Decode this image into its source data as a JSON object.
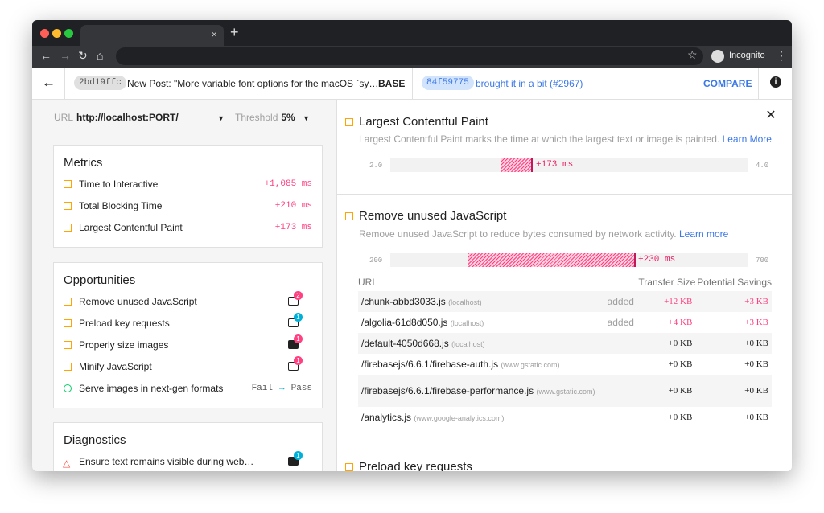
{
  "browser": {
    "tab_close": "×",
    "new_tab": "+",
    "incognito": "Incognito"
  },
  "header": {
    "base_hash": "2bd19ffc",
    "base_message": "New Post: \"More variable font options for the macOS `sy…",
    "base_label": "BASE",
    "compare_hash": "84f59775",
    "compare_message": "brought it in a bit (#2967)",
    "compare_button": "COMPARE",
    "info": "i",
    "colors": {
      "accent": "#3b78e7",
      "regression": "#ff4081",
      "warn": "#ffa400",
      "pass": "#0cce6b"
    }
  },
  "filters": {
    "url_label": "URL",
    "url_value": "http://localhost:PORT/",
    "threshold_label": "Threshold",
    "threshold_value": "5%"
  },
  "metrics": {
    "title": "Metrics",
    "items": [
      {
        "label": "Time to Interactive",
        "value": "+1,085 ms"
      },
      {
        "label": "Total Blocking Time",
        "value": "+210 ms"
      },
      {
        "label": "Largest Contentful Paint",
        "value": "+173 ms"
      }
    ]
  },
  "opportunities": {
    "title": "Opportunities",
    "items": [
      {
        "label": "Remove unused JavaScript",
        "badge": "2",
        "icon": "script-icon"
      },
      {
        "label": "Preload key requests",
        "badge": "1",
        "icon": "script-icon"
      },
      {
        "label": "Properly size images",
        "badge": "1",
        "icon": "image-icon"
      },
      {
        "label": "Minify JavaScript",
        "badge": "1",
        "icon": "script-icon"
      },
      {
        "label": "Serve images in next-gen formats",
        "from": "Fail",
        "to": "Pass"
      }
    ]
  },
  "diagnostics": {
    "title": "Diagnostics",
    "items": [
      {
        "label": "Ensure text remains visible during web…",
        "badge": "1",
        "icon": "font-icon"
      }
    ]
  },
  "detail": {
    "lcp": {
      "title": "Largest Contentful Paint",
      "description": "Largest Contentful Paint marks the time at which the largest text or image is painted.",
      "learn": "Learn More",
      "min": "2.0",
      "max": "4.0",
      "delta": "+173 ms"
    },
    "unused_js": {
      "title": "Remove unused JavaScript",
      "description": "Remove unused JavaScript to reduce bytes consumed by network activity.",
      "learn": "Learn more",
      "min": "200",
      "max": "700",
      "delta": "+230 ms",
      "columns": [
        "URL",
        "Transfer Size",
        "Potential Savings"
      ],
      "rows": [
        {
          "url": "/chunk-abbd3033.js",
          "host": "(localhost)",
          "status": "added",
          "size": "+12 KB",
          "savings": "+3 KB"
        },
        {
          "url": "/algolia-61d8d050.js",
          "host": "(localhost)",
          "status": "added",
          "size": "+4 KB",
          "savings": "+3 KB"
        },
        {
          "url": "/default-4050d668.js",
          "host": "(localhost)",
          "status": "",
          "size": "+0 KB",
          "savings": "+0 KB"
        },
        {
          "url": "/firebasejs/6.6.1/firebase-auth.js",
          "host": "(www.gstatic.com)",
          "status": "",
          "size": "+0 KB",
          "savings": "+0 KB"
        },
        {
          "url": "/firebasejs/6.6.1/firebase-performance.js",
          "host": "(www.gstatic.com)",
          "status": "",
          "size": "+0 KB",
          "savings": "+0 KB"
        },
        {
          "url": "/analytics.js",
          "host": "(www.google-analytics.com)",
          "status": "",
          "size": "+0 KB",
          "savings": "+0 KB"
        }
      ]
    },
    "preload": {
      "title": "Preload key requests"
    }
  }
}
